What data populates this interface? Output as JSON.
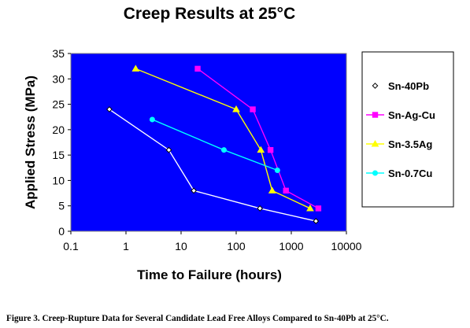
{
  "chart_data": {
    "type": "line",
    "title": "Creep Results at 25°C",
    "xlabel": "Time to Failure (hours)",
    "ylabel": "Applied Stress (MPa)",
    "xscale": "log",
    "xlim": [
      0.1,
      10000
    ],
    "ylim": [
      0,
      35
    ],
    "x_ticks": [
      "0.1",
      "1",
      "10",
      "100",
      "1000",
      "10000"
    ],
    "y_ticks": [
      "0",
      "5",
      "10",
      "15",
      "20",
      "25",
      "30",
      "35"
    ],
    "plot_background": "#0000ff",
    "grid": false,
    "legend_position": "right",
    "series": [
      {
        "name": "Sn-40Pb",
        "color": "#ffffff",
        "marker": "diamond",
        "marker_stroke": "#000000",
        "marker_fill": "#ffffff",
        "points": [
          [
            0.5,
            24
          ],
          [
            6,
            16
          ],
          [
            17,
            8
          ],
          [
            270,
            4.5
          ],
          [
            2800,
            2
          ]
        ]
      },
      {
        "name": "Sn-Ag-Cu",
        "color": "#ff00ff",
        "marker": "square",
        "marker_stroke": "#ff00ff",
        "marker_fill": "#ff00ff",
        "points": [
          [
            20,
            32
          ],
          [
            200,
            24
          ],
          [
            420,
            16
          ],
          [
            800,
            8
          ],
          [
            3100,
            4.5
          ]
        ]
      },
      {
        "name": "Sn-3.5Ag",
        "color": "#ffff00",
        "marker": "triangle",
        "marker_stroke": "#ffff00",
        "marker_fill": "#ffff00",
        "points": [
          [
            1.5,
            32
          ],
          [
            100,
            24
          ],
          [
            280,
            16
          ],
          [
            450,
            8
          ],
          [
            2200,
            4.5
          ]
        ]
      },
      {
        "name": "Sn-0.7Cu",
        "color": "#00ffff",
        "marker": "circle",
        "marker_stroke": "#00ffff",
        "marker_fill": "#00ffff",
        "points": [
          [
            3,
            22
          ],
          [
            60,
            16
          ],
          [
            560,
            12
          ]
        ]
      }
    ]
  },
  "caption": "Figure 3.  Creep-Rupture Data for Several Candidate Lead Free Alloys Compared to Sn-40Pb at 25°C."
}
